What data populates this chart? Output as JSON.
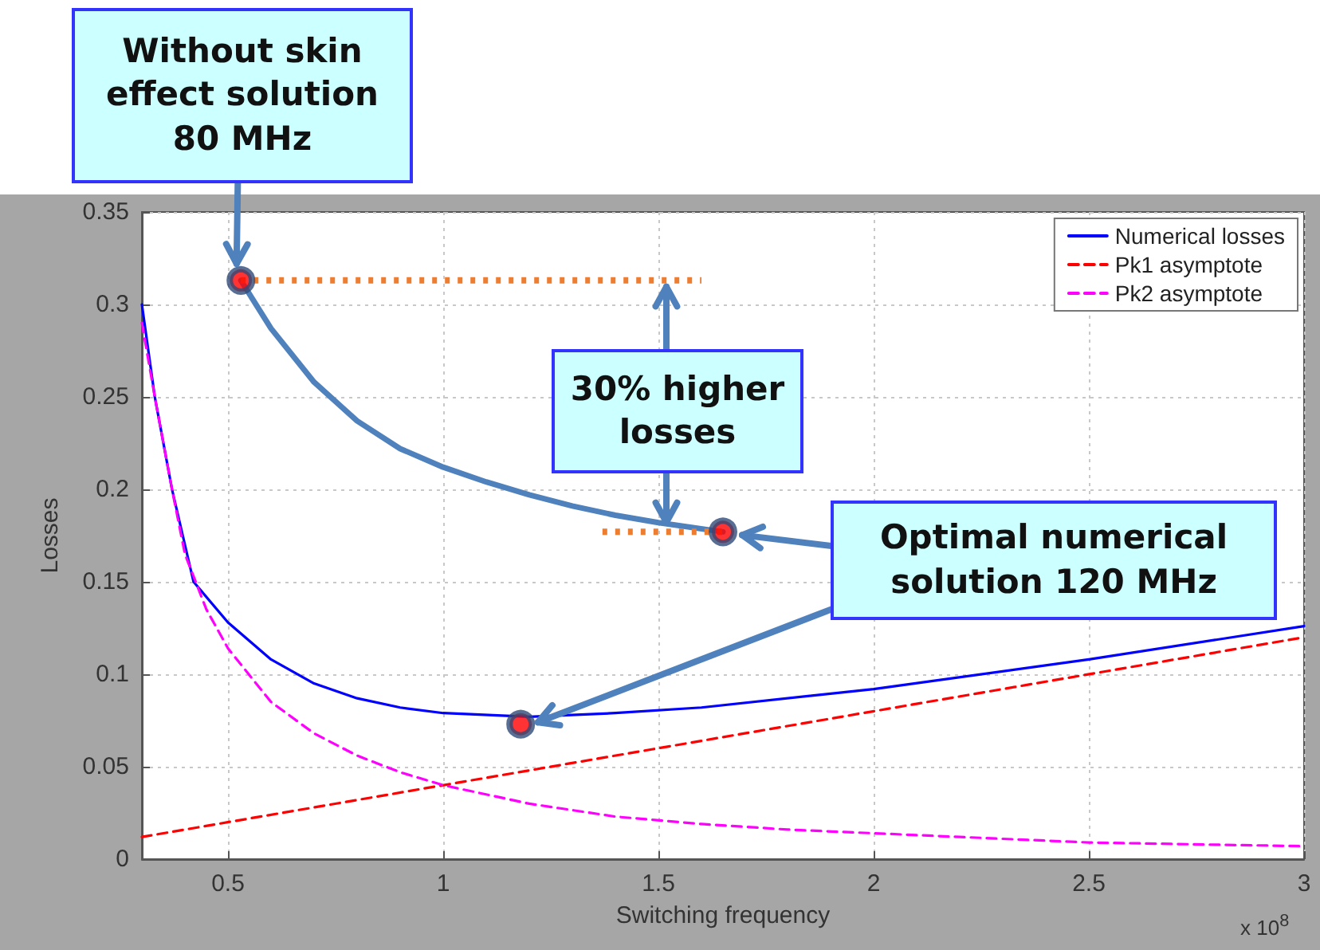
{
  "chart_data": {
    "type": "line",
    "xlabel": "Switching frequency",
    "ylabel": "Losses",
    "xlim": [
      0.3,
      3
    ],
    "xticks": [
      0.5,
      1,
      1.5,
      2,
      2.5,
      3
    ],
    "ylim": [
      0,
      0.35
    ],
    "yticks": [
      0,
      0.05,
      0.1,
      0.15,
      0.2,
      0.25,
      0.3,
      0.35
    ],
    "grid": true,
    "legend": "top right",
    "marker": "none",
    "annotations": [
      {
        "text": "Without skin effect solution 80 MHz",
        "x": 0.52,
        "y": 0.322
      },
      "30% higher losses",
      {
        "text": "Optimal numerical solution 120 MHz",
        "x": 1.22,
        "y": 0.074
      },
      "x 10$^{8}$"
    ],
    "series": [
      {
        "name": "Numerical losses",
        "color": "#0000ff",
        "line_style": "solid",
        "x": [
          0.3,
          0.33,
          0.37,
          0.42,
          0.5,
          0.6,
          0.7,
          0.8,
          0.9,
          1.0,
          1.2,
          1.4,
          1.6,
          2.0,
          2.5,
          3.0
        ],
        "values": [
          0.3,
          0.25,
          0.2,
          0.15,
          0.128,
          0.108,
          0.095,
          0.087,
          0.082,
          0.079,
          0.077,
          0.079,
          0.082,
          0.092,
          0.108,
          0.126
        ]
      },
      {
        "name": "Pk1 asymptote",
        "color": "#ff0000",
        "line_style": "dashed",
        "x": [
          0.3,
          3.0
        ],
        "values": [
          0.012,
          0.12
        ]
      },
      {
        "name": "Pk2 asymptote",
        "color": "#ff00ff",
        "line_style": "dashed",
        "x": [
          0.3,
          0.33,
          0.37,
          0.4,
          0.45,
          0.5,
          0.6,
          0.7,
          0.8,
          0.9,
          1.0,
          1.2,
          1.4,
          1.6,
          1.8,
          2.0,
          2.5,
          3.0
        ],
        "values": [
          0.29,
          0.25,
          0.2,
          0.165,
          0.135,
          0.114,
          0.085,
          0.068,
          0.056,
          0.047,
          0.04,
          0.03,
          0.023,
          0.019,
          0.016,
          0.014,
          0.009,
          0.007
        ]
      },
      {
        "color": "#4f81bd",
        "line_style": "solid",
        "x": [
          0.53,
          0.6,
          0.7,
          0.8,
          0.9,
          1.0,
          1.1,
          1.2,
          1.3,
          1.4,
          1.5,
          1.65
        ],
        "values": [
          0.313,
          0.287,
          0.258,
          0.237,
          0.222,
          0.212,
          0.204,
          0.197,
          0.191,
          0.186,
          0.182,
          0.177
        ]
      },
      {
        "color": "#ed7d31",
        "line_style": "dotted",
        "x": [
          0.53,
          1.6
        ],
        "values": [
          0.313,
          0.313
        ]
      },
      {
        "color": "#ed7d31",
        "line_style": "dotted",
        "x": [
          1.37,
          1.65
        ],
        "values": [
          0.177,
          0.177
        ]
      },
      {
        "type": "scatter",
        "marker": "circle",
        "color": "#ff0000",
        "x": [
          0.53,
          1.65,
          1.18
        ],
        "values": [
          0.313,
          0.177,
          0.073
        ]
      }
    ]
  }
}
